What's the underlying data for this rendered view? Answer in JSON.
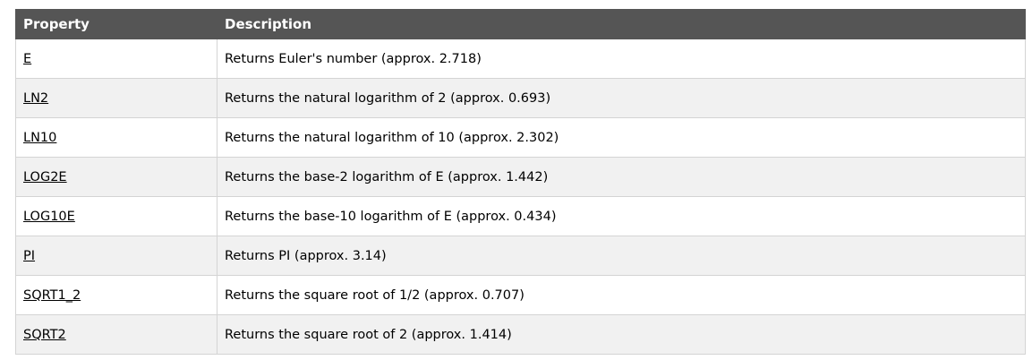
{
  "table": {
    "headers": {
      "property": "Property",
      "description": "Description"
    },
    "rows": [
      {
        "property": "E",
        "description": "Returns Euler's number (approx. 2.718)"
      },
      {
        "property": "LN2",
        "description": "Returns the natural logarithm of 2 (approx. 0.693)"
      },
      {
        "property": "LN10",
        "description": "Returns the natural logarithm of 10 (approx. 2.302)"
      },
      {
        "property": "LOG2E",
        "description": "Returns the base-2 logarithm of E (approx. 1.442)"
      },
      {
        "property": "LOG10E",
        "description": "Returns the base-10 logarithm of E (approx. 0.434)"
      },
      {
        "property": "PI",
        "description": "Returns PI (approx. 3.14)"
      },
      {
        "property": "SQRT1_2",
        "description": "Returns the square root of 1/2 (approx. 0.707)"
      },
      {
        "property": "SQRT2",
        "description": "Returns the square root of 2 (approx. 1.414)"
      }
    ]
  }
}
